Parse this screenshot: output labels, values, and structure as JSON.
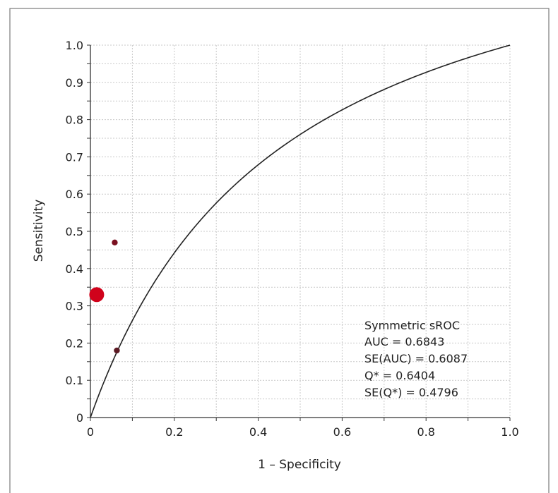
{
  "chart_data": {
    "type": "scatter",
    "title": "",
    "xlabel": "1 – Specificity",
    "ylabel": "Sensitivity",
    "xlim": [
      0,
      1
    ],
    "ylim": [
      0,
      1
    ],
    "grid": true,
    "x_ticks": [
      "0",
      "0.2",
      "0.4",
      "0.6",
      "0.8",
      "1.0"
    ],
    "x_tick_values": [
      0,
      0.2,
      0.4,
      0.6,
      0.8,
      1.0
    ],
    "y_ticks": [
      "0",
      "0.1",
      "0.2",
      "0.3",
      "0.4",
      "0.5",
      "0.6",
      "0.7",
      "0.8",
      "0.9",
      "1.0"
    ],
    "y_tick_values": [
      0,
      0.1,
      0.2,
      0.3,
      0.4,
      0.5,
      0.6,
      0.7,
      0.8,
      0.9,
      1.0
    ],
    "points": [
      {
        "x": 0.015,
        "y": 0.33,
        "weight": "large",
        "color": "#d0021b"
      },
      {
        "x": 0.058,
        "y": 0.47,
        "weight": "small",
        "color": "#7a1020"
      },
      {
        "x": 0.063,
        "y": 0.18,
        "weight": "small",
        "color": "#5c1a24"
      }
    ],
    "curve": {
      "name": "Symmetric sROC",
      "auc": 0.6843
    },
    "annotation": {
      "lines": [
        "Symmetric sROC",
        "AUC = 0.6843",
        "SE(AUC) = 0.6087",
        "Q* = 0.6404",
        "SE(Q*) = 0.4796"
      ]
    }
  }
}
